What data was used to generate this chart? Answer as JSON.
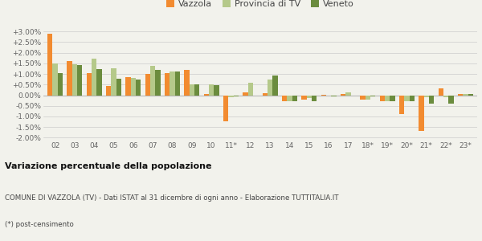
{
  "categories": [
    "02",
    "03",
    "04",
    "05",
    "06",
    "07",
    "08",
    "09",
    "10",
    "11*",
    "12",
    "13",
    "14",
    "15",
    "16",
    "17",
    "18*",
    "19*",
    "20*",
    "21*",
    "22*",
    "23*"
  ],
  "vazzola": [
    2.9,
    1.6,
    1.05,
    0.45,
    0.87,
    1.02,
    1.05,
    1.2,
    0.07,
    -1.22,
    0.12,
    0.1,
    -0.3,
    -0.2,
    0.02,
    0.05,
    -0.22,
    -0.28,
    -0.87,
    -1.68,
    0.33,
    0.05
  ],
  "provincia": [
    1.48,
    1.45,
    1.72,
    1.28,
    0.8,
    1.38,
    1.12,
    0.5,
    0.5,
    -0.08,
    0.58,
    0.72,
    -0.3,
    -0.15,
    0.0,
    0.15,
    -0.22,
    -0.28,
    -0.3,
    -0.1,
    -0.1,
    0.07
  ],
  "veneto": [
    1.05,
    1.42,
    1.22,
    0.78,
    0.73,
    1.21,
    1.1,
    0.53,
    0.48,
    -0.05,
    0.0,
    0.92,
    -0.3,
    -0.28,
    -0.05,
    0.0,
    -0.05,
    -0.28,
    -0.28,
    -0.38,
    -0.4,
    0.07
  ],
  "color_vazzola": "#f28b30",
  "color_provincia": "#b5c98a",
  "color_veneto": "#6b8c3e",
  "bg_color": "#f2f2ec",
  "title_bold": "Variazione percentuale della popolazione",
  "subtitle": "COMUNE DI VAZZOLA (TV) - Dati ISTAT al 31 dicembre di ogni anno - Elaborazione TUTTITALIA.IT",
  "footnote": "(*) post-censimento",
  "ylim": [
    -2.1,
    3.35
  ],
  "yticks": [
    -2.0,
    -1.5,
    -1.0,
    -0.5,
    0.0,
    0.5,
    1.0,
    1.5,
    2.0,
    2.5,
    3.0
  ],
  "legend_labels": [
    "Vazzola",
    "Provincia di TV",
    "Veneto"
  ]
}
